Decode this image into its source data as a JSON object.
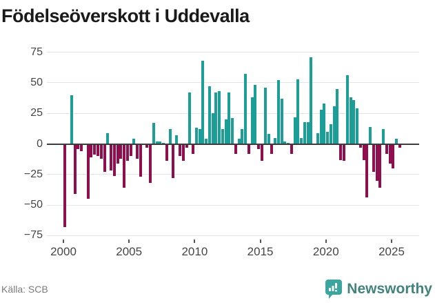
{
  "title": "Födelseöverskott i Uddevalla",
  "footer": {
    "source": "Källa: SCB",
    "brand": "Newsworthy"
  },
  "colors": {
    "positive_bar": "#1A9E97",
    "negative_bar": "#8F0E4E",
    "gridline": "#E4E4E4",
    "zero_line": "#3C3C3C",
    "axis_text": "#454545",
    "source_text": "#7B7B7B",
    "brand_text": "#43837D",
    "brand_icon": "#3CA59D",
    "title_text": "#1A1A1A"
  },
  "chart_data": {
    "type": "bar",
    "title": "Födelseöverskott i Uddevalla",
    "frequency": "quarterly",
    "start_year": 2000,
    "start_quarter": 1,
    "xlabel": "",
    "ylabel": "",
    "ylim": [
      -75,
      75
    ],
    "grid": true,
    "y_ticks": [
      75,
      50,
      25,
      0,
      -25,
      -50,
      -75
    ],
    "y_tick_labels": [
      "75",
      "50",
      "25",
      "0",
      "−25",
      "−50",
      "−75"
    ],
    "x_tick_years": [
      2000,
      2005,
      2010,
      2015,
      2020,
      2025
    ],
    "x_tick_labels": [
      "2000",
      "2005",
      "2010",
      "2015",
      "2020",
      "2025"
    ],
    "values": [
      -68,
      0,
      40,
      -41,
      -4,
      -6,
      0,
      -45,
      -11,
      -9,
      -10,
      -12,
      -23,
      9,
      -22,
      -26,
      -16,
      -12,
      -36,
      -14,
      -10,
      4,
      -12,
      -27,
      0,
      -3,
      -32,
      17,
      2,
      2,
      1,
      -14,
      12,
      -28,
      7,
      -10,
      -14,
      -3,
      42,
      -8,
      13,
      12,
      68,
      4,
      47,
      25,
      42,
      43,
      12,
      20,
      42,
      21,
      -8,
      4,
      12,
      57,
      -8,
      38,
      48,
      -4,
      -14,
      46,
      8,
      -8,
      5,
      52,
      37,
      2,
      1,
      -8,
      22,
      53,
      5,
      18,
      18,
      71,
      0,
      9,
      28,
      33,
      10,
      16,
      31,
      45,
      -13,
      -14,
      56,
      38,
      36,
      29,
      -3,
      -13,
      -44,
      14,
      -23,
      -30,
      -36,
      12,
      -8,
      -16,
      -20,
      4,
      -3
    ]
  }
}
